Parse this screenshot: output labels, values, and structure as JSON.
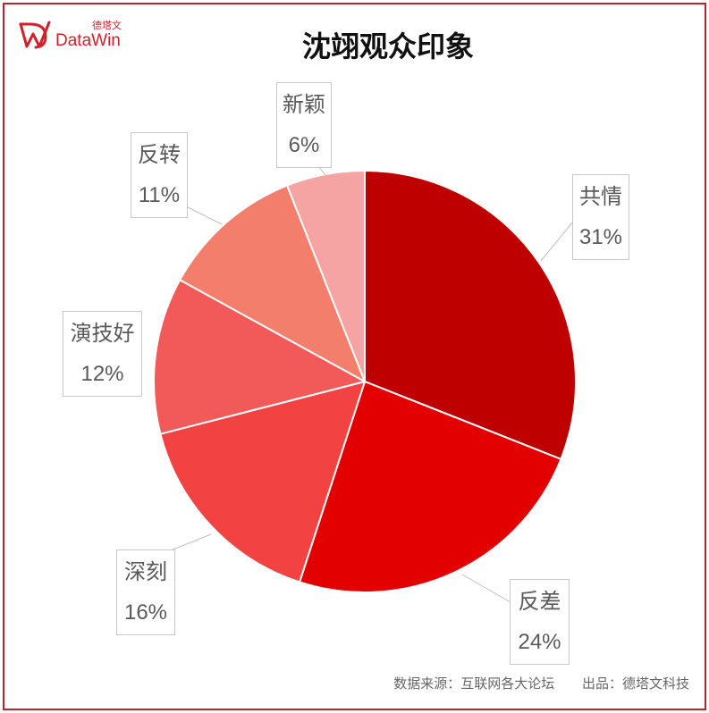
{
  "logo": {
    "icon": "datawin-logo-icon",
    "name_cn": "德塔文",
    "name_en": "DataWin"
  },
  "chart_data": {
    "type": "pie",
    "title": "沈翊观众印象",
    "categories": [
      "共情",
      "反差",
      "深刻",
      "演技好",
      "反转",
      "新颖"
    ],
    "values": [
      31,
      24,
      16,
      12,
      11,
      6
    ],
    "unit": "%",
    "colors": [
      "#BF0000",
      "#E30000",
      "#F24242",
      "#F25959",
      "#F47E6C",
      "#F5A3A3"
    ]
  },
  "footer": {
    "source": "数据来源：互联网各大论坛",
    "producer": "出品：德塔文科技"
  },
  "theme": {
    "brand_color": "#d0202a",
    "frame_color": "#b3262b",
    "label_text_color": "#595959",
    "label_border_color": "#c8c8c8",
    "leader_line_color": "#bfbfbf",
    "separator_color": "#ffffff"
  }
}
